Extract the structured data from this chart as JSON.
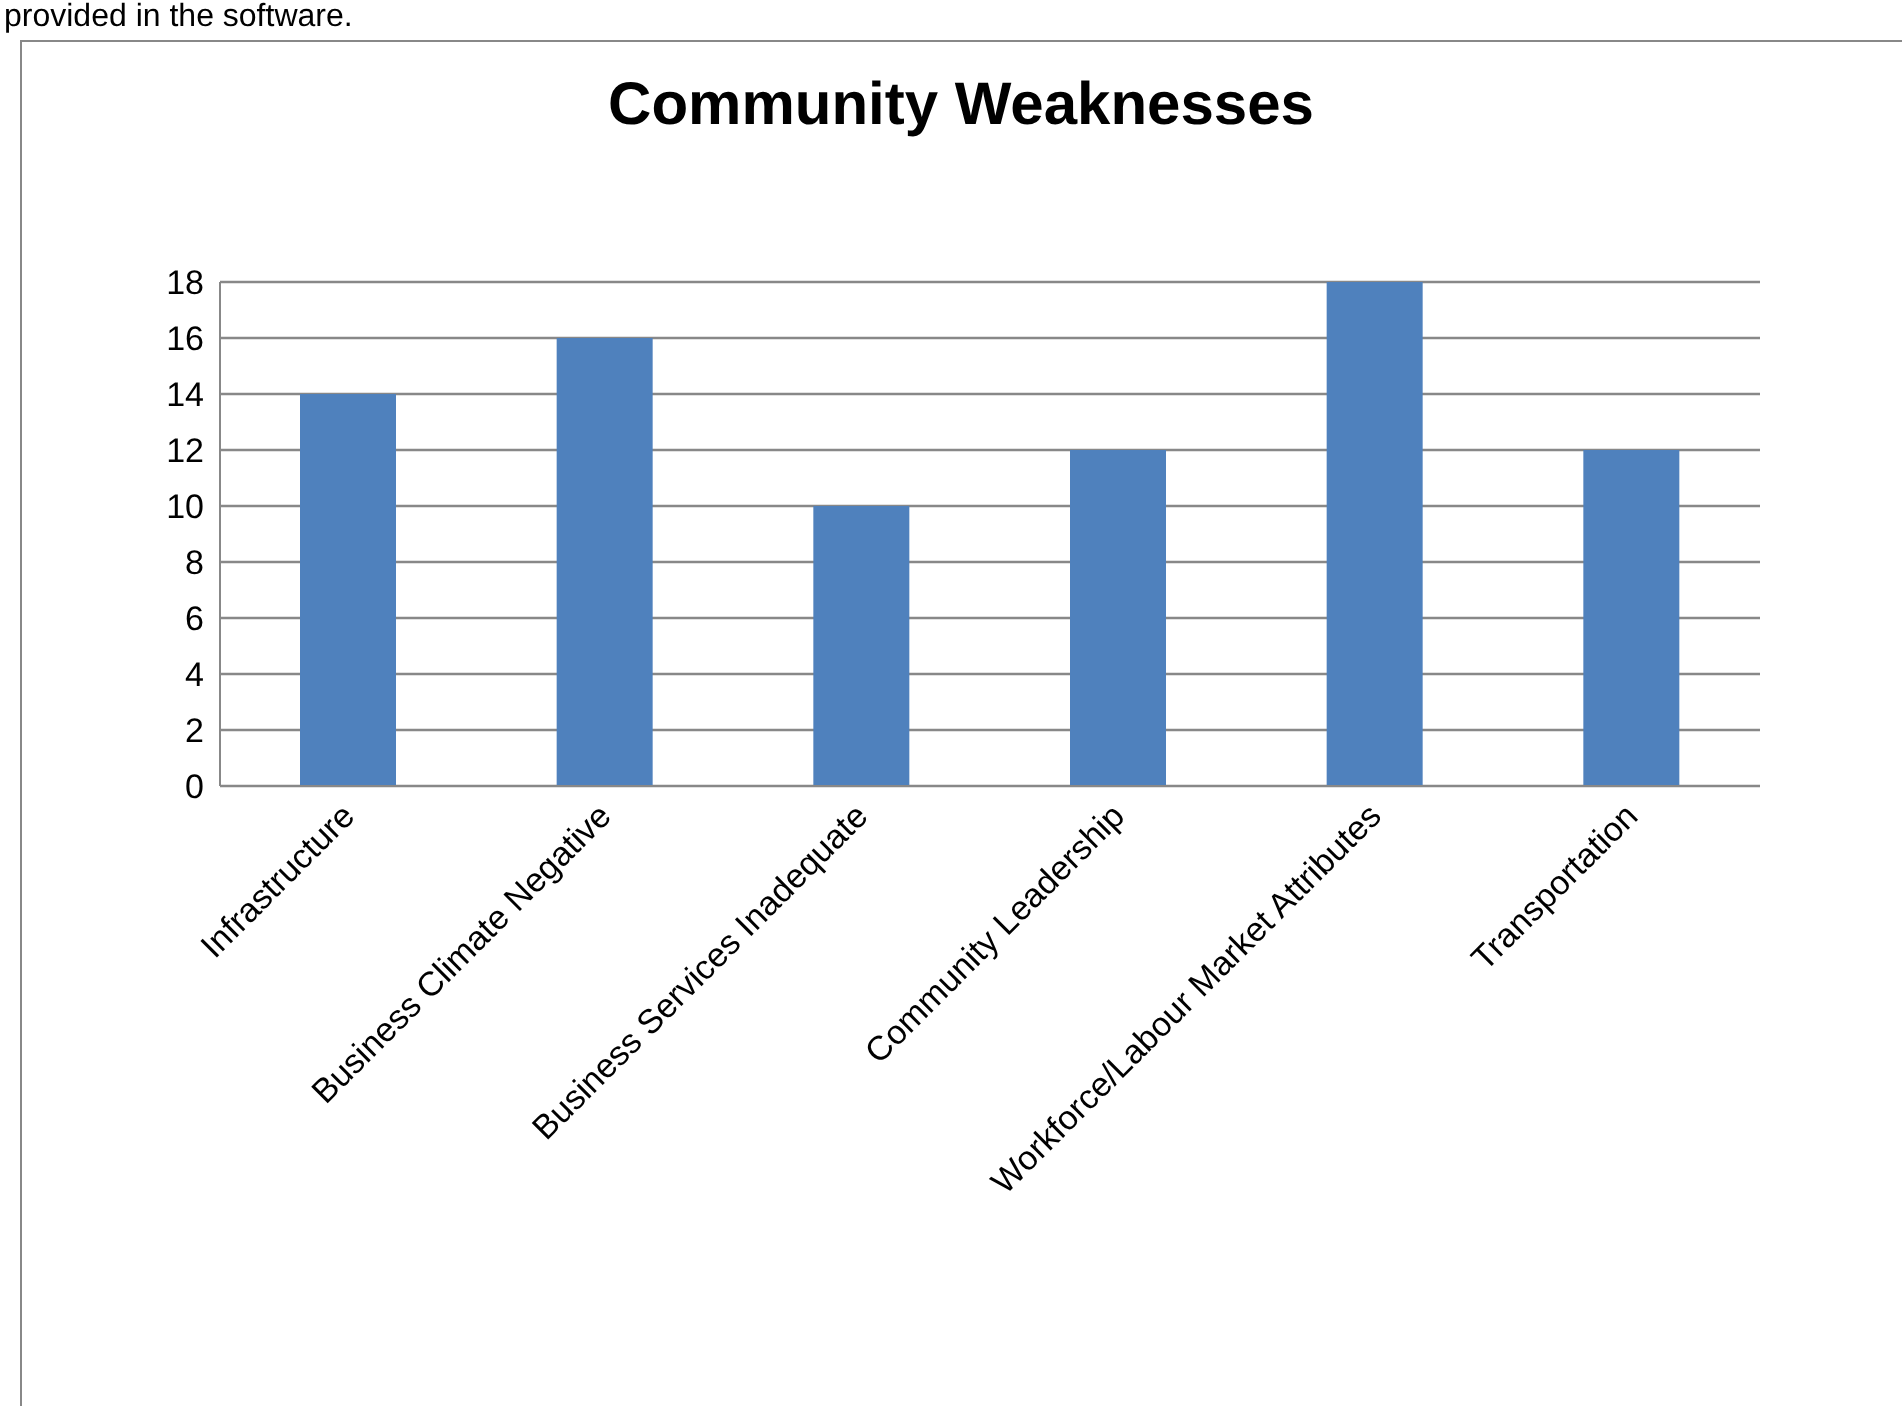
{
  "chart_data": {
    "type": "bar",
    "title": "Community Weaknesses",
    "annotations": [
      "provided in the software."
    ],
    "categories": [
      "Infrastructure",
      "Business Climate Negative",
      "Business Services Inadequate",
      "Community Leadership",
      "Workforce/Labour Market Attributes",
      "Transportation"
    ],
    "values": [
      14,
      16,
      10,
      12,
      18,
      12
    ],
    "color": "#4f81bd",
    "ylim": [
      0,
      18
    ],
    "yticks": [
      0,
      2,
      4,
      6,
      8,
      10,
      12,
      14,
      16,
      18
    ],
    "grid": "y"
  }
}
